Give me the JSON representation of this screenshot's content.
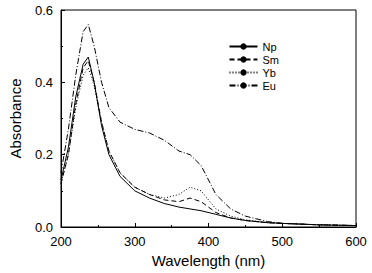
{
  "chart_data": {
    "type": "line",
    "x_label": "Wavelength (nm)",
    "y_label": "Absorbance",
    "x": [
      200,
      210,
      220,
      230,
      237,
      245,
      255,
      265,
      280,
      300,
      320,
      340,
      360,
      375,
      390,
      410,
      430,
      450,
      480,
      500,
      550,
      600
    ],
    "series": [
      {
        "name": "Np",
        "color": "#000000",
        "line_style": "solid",
        "values": [
          0.13,
          0.22,
          0.36,
          0.45,
          0.47,
          0.4,
          0.28,
          0.2,
          0.14,
          0.1,
          0.08,
          0.065,
          0.055,
          0.05,
          0.045,
          0.035,
          0.025,
          0.018,
          0.012,
          0.01,
          0.006,
          0.004
        ]
      },
      {
        "name": "Sm",
        "color": "#000000",
        "line_style": "dashed",
        "values": [
          0.12,
          0.2,
          0.34,
          0.44,
          0.46,
          0.4,
          0.29,
          0.21,
          0.15,
          0.11,
          0.09,
          0.075,
          0.07,
          0.08,
          0.07,
          0.04,
          0.025,
          0.018,
          0.012,
          0.01,
          0.006,
          0.004
        ]
      },
      {
        "name": "Yb",
        "color": "#000000",
        "line_style": "dotted",
        "values": [
          0.12,
          0.2,
          0.33,
          0.42,
          0.44,
          0.39,
          0.29,
          0.21,
          0.15,
          0.11,
          0.09,
          0.08,
          0.09,
          0.11,
          0.1,
          0.05,
          0.03,
          0.02,
          0.012,
          0.01,
          0.006,
          0.004
        ]
      },
      {
        "name": "Eu",
        "color": "#000000",
        "line_style": "dashdot",
        "values": [
          0.15,
          0.27,
          0.42,
          0.54,
          0.56,
          0.5,
          0.4,
          0.33,
          0.29,
          0.27,
          0.26,
          0.24,
          0.21,
          0.2,
          0.17,
          0.09,
          0.05,
          0.03,
          0.015,
          0.01,
          0.006,
          0.004
        ]
      }
    ],
    "xlim": [
      200,
      600
    ],
    "xticks": [
      200,
      300,
      400,
      500,
      600
    ],
    "ylim": [
      0,
      0.6
    ],
    "yticks": [
      {
        "value": 0,
        "label": "0.0"
      },
      0.2,
      0.4,
      0.6
    ],
    "grid": false,
    "legend": "upper right"
  }
}
